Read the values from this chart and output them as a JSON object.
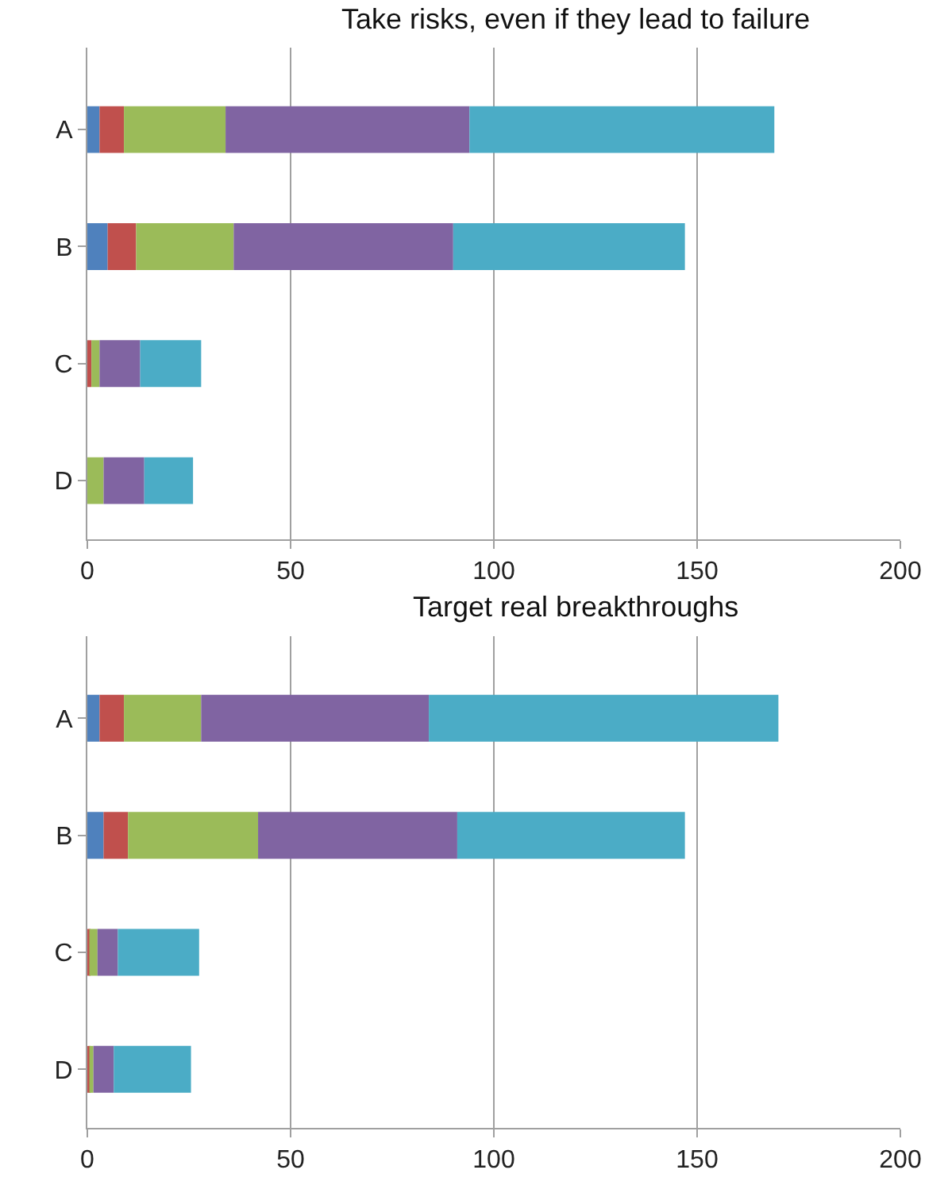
{
  "chart_data": [
    {
      "type": "bar",
      "orientation": "horizontal",
      "stacked": true,
      "title": "Take risks, even if they lead to failure",
      "categories": [
        "A",
        "B",
        "C",
        "D"
      ],
      "series": [
        {
          "color": "#4f81bd",
          "values": [
            3,
            5,
            0,
            0
          ]
        },
        {
          "color": "#c0504d",
          "values": [
            6,
            7,
            1,
            0
          ]
        },
        {
          "color": "#9bbb59",
          "values": [
            25,
            24,
            2,
            4
          ]
        },
        {
          "color": "#8064a2",
          "values": [
            60,
            54,
            10,
            10
          ]
        },
        {
          "color": "#4bacc6",
          "values": [
            75,
            57,
            15,
            12
          ]
        }
      ],
      "xlim": [
        0,
        200
      ],
      "xticks": [
        0,
        50,
        100,
        150,
        200
      ],
      "grid": "x"
    },
    {
      "type": "bar",
      "orientation": "horizontal",
      "stacked": true,
      "title": "Target real breakthroughs",
      "categories": [
        "A",
        "B",
        "C",
        "D"
      ],
      "series": [
        {
          "color": "#4f81bd",
          "values": [
            3,
            4,
            0,
            0
          ]
        },
        {
          "color": "#c0504d",
          "values": [
            6,
            6,
            0.5,
            0.5
          ]
        },
        {
          "color": "#9bbb59",
          "values": [
            19,
            32,
            2,
            1
          ]
        },
        {
          "color": "#8064a2",
          "values": [
            56,
            49,
            5,
            5
          ]
        },
        {
          "color": "#4bacc6",
          "values": [
            86,
            56,
            20,
            19
          ]
        }
      ],
      "xlim": [
        0,
        200
      ],
      "xticks": [
        0,
        50,
        100,
        150,
        200
      ],
      "grid": "x"
    }
  ]
}
